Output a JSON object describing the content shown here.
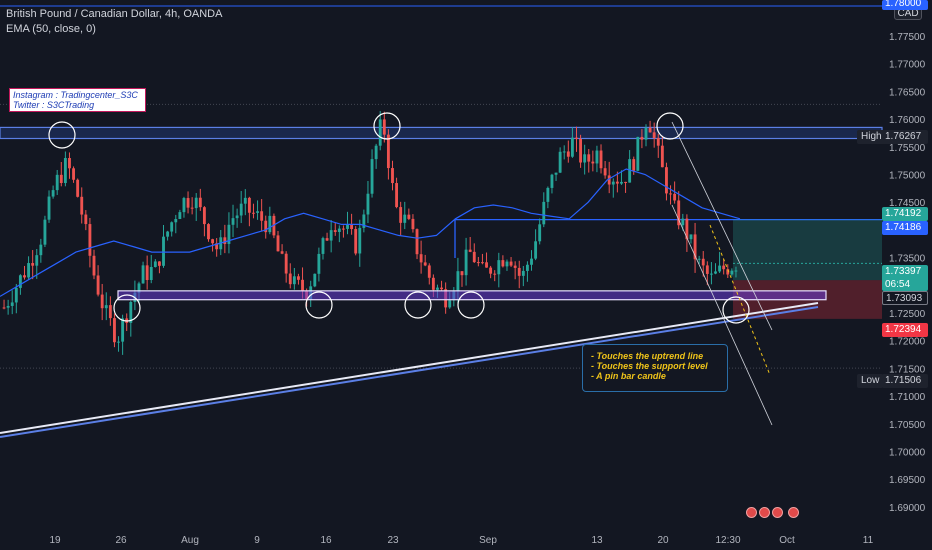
{
  "header": {
    "title": "British Pound / Canadian Dollar, 4h, OANDA",
    "indicator": "EMA (50, close, 0)"
  },
  "social": {
    "instagram": "Instagram : Tradingcenter_S3C",
    "twitter": "Twitter : S3CTrading"
  },
  "note": {
    "lines": [
      "- Touches the uptrend line",
      "- Touches the support level",
      "- A pin bar candle"
    ]
  },
  "currency_button": "CAD",
  "labels": {
    "high": "High",
    "low": "Low"
  },
  "price_tags": {
    "top": "1.78000",
    "high": "1.76267",
    "tp": "1.74192",
    "entry_line": "1.74186",
    "current": "1.73397",
    "countdown": "06:54",
    "entry": "1.73093",
    "sl": "1.72394",
    "low": "1.71506"
  },
  "colors": {
    "bull": "#26a69a",
    "bear": "#ef5350",
    "ema": "#2962ff",
    "zone": "#6a3dd6",
    "resistance": "#2e5bd0",
    "stop": "#f23645",
    "note_text": "#f0c419"
  },
  "chart_data": {
    "type": "candlestick",
    "title": "British Pound / Canadian Dollar, 4h, OANDA",
    "ylim": [
      1.6887,
      1.7815
    ],
    "y_ticks": [
      "1.77500",
      "1.77000",
      "1.76500",
      "1.76000",
      "1.75500",
      "1.75000",
      "1.74500",
      "1.74000",
      "1.73500",
      "1.73000",
      "1.72500",
      "1.72000",
      "1.71500",
      "1.71000",
      "1.70500",
      "1.70000",
      "1.69500",
      "1.69000"
    ],
    "x_ticks": [
      "19",
      "26",
      "Aug",
      "9",
      "16",
      "23",
      "Sep",
      "13",
      "20",
      "12:30",
      "Oct",
      "11"
    ],
    "high": 1.76267,
    "low": 1.71506,
    "last": 1.73397,
    "closes": [
      1.726,
      1.73,
      1.734,
      1.739,
      1.748,
      1.752,
      1.745,
      1.733,
      1.725,
      1.7205,
      1.727,
      1.732,
      1.733,
      1.74,
      1.745,
      1.746,
      1.741,
      1.736,
      1.742,
      1.744,
      1.7425,
      1.741,
      1.734,
      1.73,
      1.729,
      1.735,
      1.742,
      1.74,
      1.737,
      1.75,
      1.76,
      1.744,
      1.741,
      1.735,
      1.73,
      1.728,
      1.732,
      1.736,
      1.732,
      1.734,
      1.736,
      1.731,
      1.737,
      1.746,
      1.753,
      1.756,
      1.752,
      1.754,
      1.75,
      1.749,
      1.753,
      1.761,
      1.752,
      1.744,
      1.74,
      1.734,
      1.731,
      1.733,
      1.734
    ],
    "ema50": [
      1.728,
      1.73,
      1.732,
      1.734,
      1.736,
      1.737,
      1.738,
      1.737,
      1.736,
      1.736,
      1.736,
      1.737,
      1.738,
      1.739,
      1.74,
      1.742,
      1.743,
      1.742,
      1.741,
      1.741,
      1.74,
      1.739,
      1.7385,
      1.739,
      1.742,
      1.744,
      1.7445,
      1.744,
      1.743,
      1.7425,
      1.742,
      1.745,
      1.749,
      1.751,
      1.75,
      1.748,
      1.746,
      1.744,
      1.743,
      1.742
    ],
    "resistance_zone": [
      1.7565,
      1.7585
    ],
    "support_zone": [
      1.7274,
      1.729
    ],
    "tp_level": 1.74192,
    "entry_level": 1.73093,
    "sl_level": 1.72394,
    "highlights": [
      "resistance touch",
      "resistance touch",
      "resistance touch",
      "support touch",
      "support touch",
      "support touch",
      "support touch",
      "support touch",
      "pin bar"
    ]
  }
}
